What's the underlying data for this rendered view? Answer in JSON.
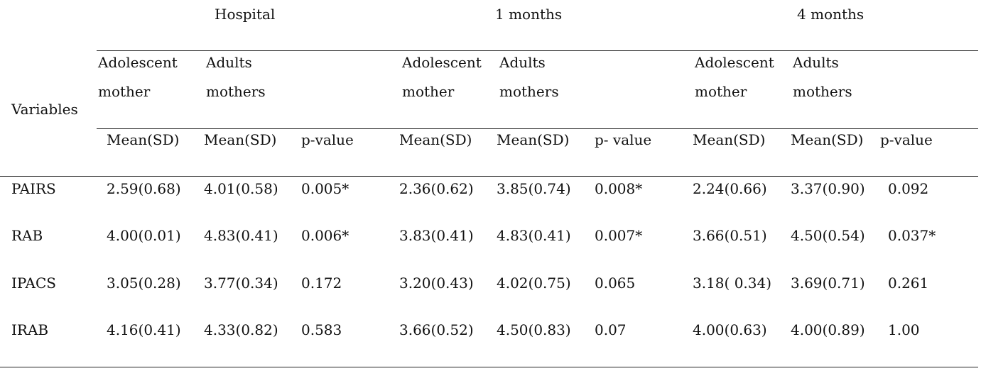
{
  "table": {
    "periods": [
      "Hospital",
      "1 months",
      "4 months"
    ],
    "variables_label": "Variables",
    "subgroups": [
      [
        "Adolescent",
        "mother"
      ],
      [
        "Adults",
        "mothers"
      ],
      [
        "Adolescent",
        "mother"
      ],
      [
        "Adults",
        "mothers"
      ],
      [
        "Adolescent",
        "mother"
      ],
      [
        "Adults",
        "mothers"
      ]
    ],
    "stat_headers": [
      "Mean(SD)",
      "Mean(SD)",
      "p-value",
      "Mean(SD)",
      "Mean(SD)",
      "p- value",
      "Mean(SD)",
      "Mean(SD)",
      "p-value"
    ],
    "rows": [
      {
        "variable": "PAIRS",
        "cells": [
          "2.59(0.68)",
          "4.01(0.58)",
          "0.005*",
          "2.36(0.62)",
          "3.85(0.74)",
          "0.008*",
          "2.24(0.66)",
          "3.37(0.90)",
          "0.092"
        ]
      },
      {
        "variable": "RAB",
        "cells": [
          "4.00(0.01)",
          "4.83(0.41)",
          "0.006*",
          "3.83(0.41)",
          "4.83(0.41)",
          "0.007*",
          "3.66(0.51)",
          "4.50(0.54)",
          "0.037*"
        ]
      },
      {
        "variable": "IPACS",
        "cells": [
          "3.05(0.28)",
          "3.77(0.34)",
          "0.172",
          "3.20(0.43)",
          "4.02(0.75)",
          "0.065",
          "3.18( 0.34)",
          "3.69(0.71)",
          "0.261"
        ]
      },
      {
        "variable": "IRAB",
        "cells": [
          "4.16(0.41)",
          "4.33(0.82)",
          "0.583",
          "3.66(0.52)",
          "4.50(0.83)",
          "0.07",
          "4.00(0.63)",
          "4.00(0.89)",
          "1.00"
        ]
      }
    ]
  }
}
